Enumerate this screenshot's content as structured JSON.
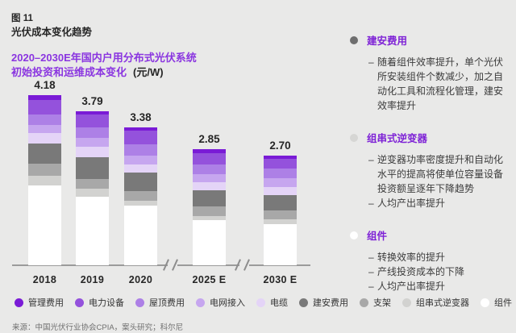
{
  "page": {
    "fig_label": "图 11",
    "fig_title": "光伏成本变化趋势",
    "subtitle_line1": "2020–2030E年国内户用分布式光伏系统",
    "subtitle_line2": "初始投资和运维成本变化",
    "subtitle_unit": "(元/W)",
    "source": "来源：中国光伏行业协会CPIA，案头研究；科尔尼"
  },
  "colors": {
    "background": "#E9E9E8",
    "accent_purple": "#8A35E0",
    "axis": "#9B9B9B",
    "text_dark": "#262626"
  },
  "chart_data": {
    "type": "bar",
    "stacked": true,
    "title": "2020–2030E年国内户用分布式光伏系统初始投资和运维成本变化",
    "unit": "元/W",
    "categories": [
      "2018",
      "2019",
      "2020",
      "2025 E",
      "2030 E"
    ],
    "totals": [
      4.18,
      3.79,
      3.38,
      2.85,
      2.7
    ],
    "axis_breaks": [
      "between 2020 and 2025 E",
      "between 2025 E and 2030 E"
    ],
    "legend_position": "bottom",
    "grid": false,
    "series": [
      {
        "name": "组件",
        "color": "#FFFFFF",
        "values": [
          1.96,
          1.69,
          1.46,
          1.11,
          1.01
        ]
      },
      {
        "name": "组串式逆变器",
        "color": "#D2D2D0",
        "values": [
          0.23,
          0.2,
          0.13,
          0.1,
          0.12
        ]
      },
      {
        "name": "支架",
        "color": "#A8A8A8",
        "values": [
          0.3,
          0.23,
          0.23,
          0.23,
          0.22
        ]
      },
      {
        "name": "建安费用",
        "color": "#797979",
        "values": [
          0.5,
          0.53,
          0.45,
          0.4,
          0.38
        ]
      },
      {
        "name": "电缆",
        "color": "#E4D4F7",
        "values": [
          0.26,
          0.27,
          0.21,
          0.2,
          0.2
        ]
      },
      {
        "name": "电网接入",
        "color": "#C6A6EF",
        "values": [
          0.2,
          0.2,
          0.21,
          0.2,
          0.2
        ]
      },
      {
        "name": "屋顶费用",
        "color": "#AD80E6",
        "values": [
          0.26,
          0.27,
          0.29,
          0.24,
          0.24
        ]
      },
      {
        "name": "电力设备",
        "color": "#9452DC",
        "values": [
          0.36,
          0.32,
          0.32,
          0.28,
          0.24
        ]
      },
      {
        "name": "管理费用",
        "color": "#7A1BD6",
        "values": [
          0.11,
          0.08,
          0.08,
          0.09,
          0.09
        ]
      }
    ]
  },
  "panel": {
    "sections": [
      {
        "dot_color": "#6E6E6E",
        "title": "建安费用",
        "bullets": [
          "随着组件效率提升，单个光伏所安装组件个数减少，加之自动化工具和流程化管理，建安效率提升"
        ]
      },
      {
        "dot_color": "#D6D6D4",
        "title": "组串式逆变器",
        "bullets": [
          "逆变器功率密度提升和自动化水平的提高将使单位容量设备投资额呈逐年下降趋势",
          "人均产出率提升"
        ]
      },
      {
        "dot_color": "#FFFFFF",
        "title": "组件",
        "bullets": [
          "转换效率的提升",
          "产线投资成本的下降",
          "人均产出率提升"
        ]
      }
    ]
  }
}
